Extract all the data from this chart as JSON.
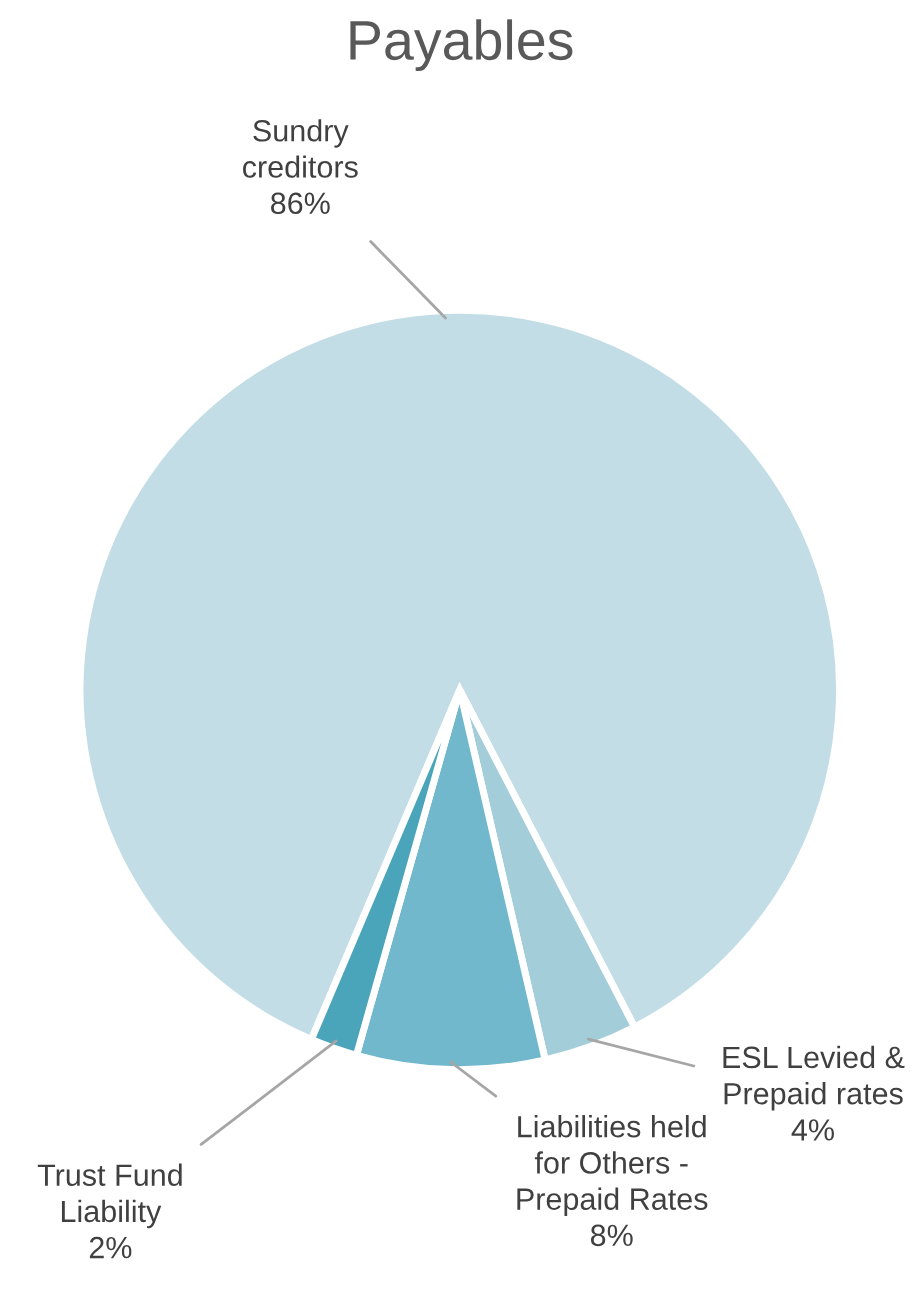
{
  "chart_data": {
    "type": "pie",
    "title": "Payables",
    "categories": [
      "Sundry creditors",
      "ESL Levied & Prepaid rates",
      "Liabilities held for Others - Prepaid Rates",
      "Trust Fund Liability"
    ],
    "values": [
      86,
      4,
      8,
      2
    ],
    "value_labels": [
      "86%",
      "4%",
      "8%",
      "2%"
    ],
    "colors": [
      "#c2dde5",
      "#a3cdd9",
      "#72b8cc",
      "#4aa5bb"
    ]
  }
}
